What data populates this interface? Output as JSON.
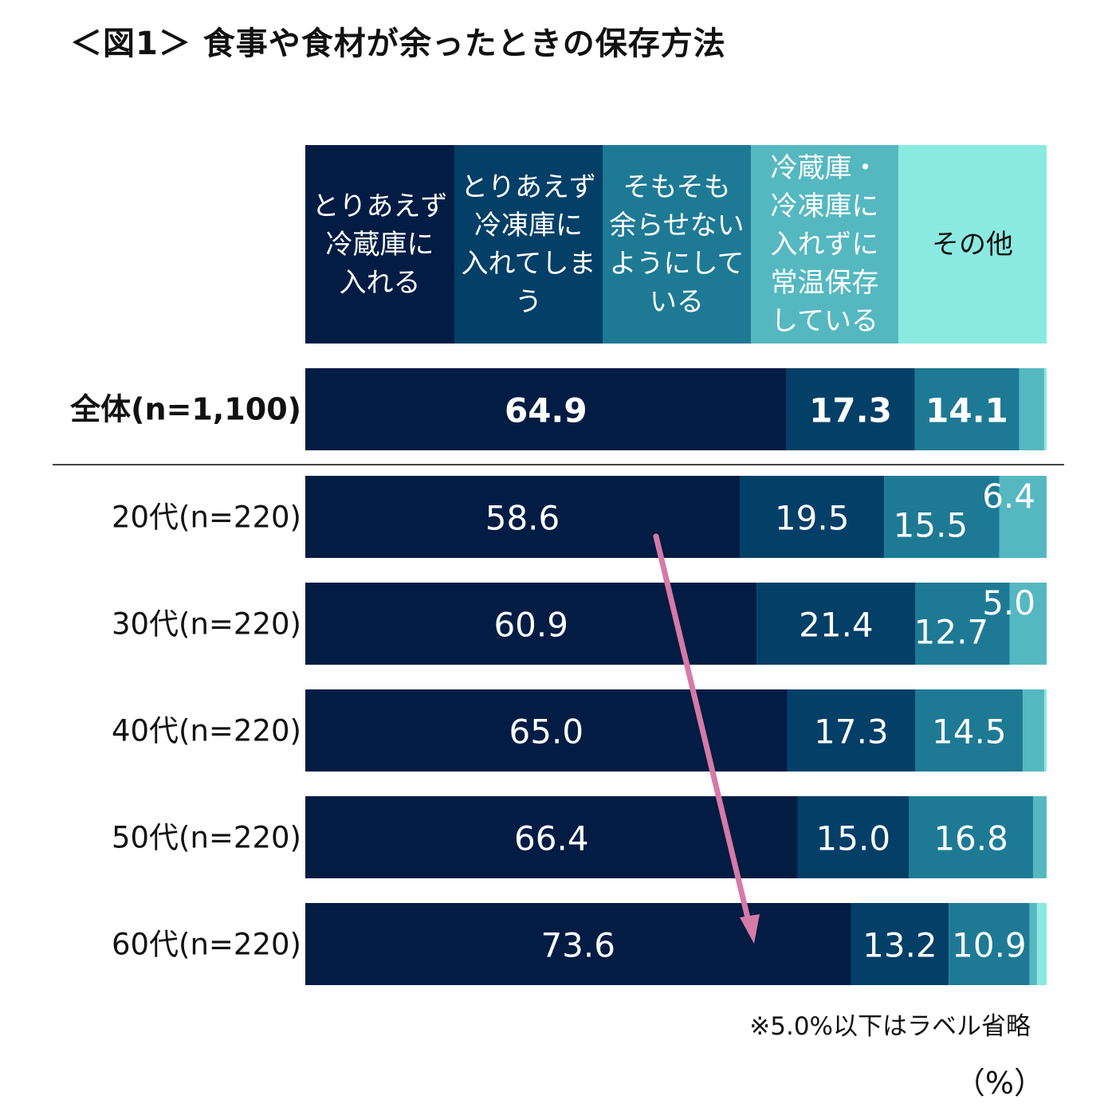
{
  "title": "＜図1＞ 食事や食材が余ったときの保存方法",
  "chart_data": {
    "type": "bar",
    "orientation": "horizontal",
    "stacked": true,
    "percent_stacked": true,
    "series": [
      {
        "name": "とりあえず\n冷蔵庫に\n入れる",
        "color": "#021c44",
        "label_color": "#ffffff",
        "values": [
          64.9,
          58.6,
          60.9,
          65.0,
          66.4,
          73.6
        ]
      },
      {
        "name": "とりあえず\n冷凍庫に\n入れてしま\nう",
        "color": "#043f67",
        "label_color": "#ffffff",
        "values": [
          17.3,
          19.5,
          21.4,
          17.3,
          15.0,
          13.2
        ]
      },
      {
        "name": "そもそも\n余らせない\nようにして\nいる",
        "color": "#1e7a94",
        "label_color": "#ffffff",
        "values": [
          14.1,
          15.5,
          12.7,
          14.5,
          16.8,
          10.9
        ]
      },
      {
        "name": "冷蔵庫・\n冷凍庫に\n入れずに\n常温保存\nしている",
        "color": "#55b8c1",
        "label_color": "#ffffff",
        "values": [
          3.4,
          6.4,
          5.0,
          2.9,
          1.8,
          1.0
        ]
      },
      {
        "name": "その他",
        "color": "#8aeae0",
        "label_color": "#111111",
        "values": [
          0.3,
          0.0,
          0.0,
          0.3,
          0.0,
          1.3
        ]
      }
    ],
    "categories": [
      "全体(n=1,100)",
      "20代(n=220)",
      "30代(n=220)",
      "40代(n=220)",
      "50代(n=220)",
      "60代(n=220)"
    ],
    "category_bold": [
      true,
      false,
      false,
      false,
      false,
      false
    ],
    "data_labels": [
      [
        {
          "series": 0,
          "text": "64.9",
          "bold": true
        },
        {
          "series": 1,
          "text": "17.3",
          "bold": true
        },
        {
          "series": 2,
          "text": "14.1",
          "bold": true
        }
      ],
      [
        {
          "series": 0,
          "text": "58.6",
          "bold": false
        },
        {
          "series": 1,
          "text": "19.5",
          "bold": false
        },
        {
          "series": 2,
          "text": "15.5",
          "bold": false,
          "offset": "low"
        },
        {
          "series": 3,
          "text": "6.4",
          "bold": false,
          "offset": "high"
        }
      ],
      [
        {
          "series": 0,
          "text": "60.9",
          "bold": false
        },
        {
          "series": 1,
          "text": "21.4",
          "bold": false
        },
        {
          "series": 2,
          "text": "12.7",
          "bold": false,
          "offset": "low"
        },
        {
          "series": 3,
          "text": "5.0",
          "bold": false,
          "offset": "high"
        }
      ],
      [
        {
          "series": 0,
          "text": "65.0",
          "bold": false
        },
        {
          "series": 1,
          "text": "17.3",
          "bold": false
        },
        {
          "series": 2,
          "text": "14.5",
          "bold": false
        }
      ],
      [
        {
          "series": 0,
          "text": "66.4",
          "bold": false
        },
        {
          "series": 1,
          "text": "15.0",
          "bold": false
        },
        {
          "series": 2,
          "text": "16.8",
          "bold": false
        }
      ],
      [
        {
          "series": 0,
          "text": "73.6",
          "bold": false
        },
        {
          "series": 1,
          "text": "13.2",
          "bold": false
        },
        {
          "series": 2,
          "text": "10.9",
          "bold": false
        }
      ]
    ],
    "xlim": [
      0,
      100
    ],
    "annotation": {
      "type": "arrow",
      "from_category": 1,
      "to_category": 5,
      "color": "#d67aa8"
    },
    "separator_after_category": 0,
    "note": "※5.0%以下はラベル省略",
    "unit_label": "（%）"
  }
}
